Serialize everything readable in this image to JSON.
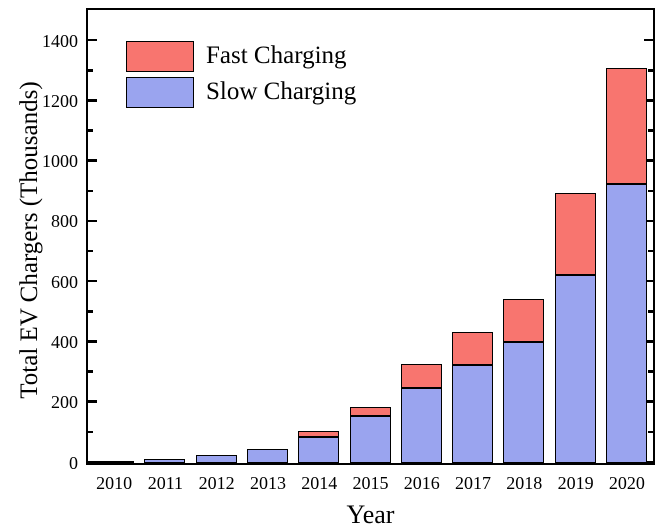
{
  "figure": {
    "y_axis_title": "Total EV Chargers (Thousands)",
    "x_axis_title": "Year",
    "legend": [
      {
        "label": "Fast Charging",
        "color": "#f8756f"
      },
      {
        "label": "Slow Charging",
        "color": "#9aa4ef"
      }
    ],
    "colors": {
      "fast": "#f8756f",
      "slow": "#9aa4ef",
      "axis": "#000000",
      "background": "#ffffff"
    }
  },
  "chart_data": {
    "type": "bar",
    "stacked": true,
    "title": "",
    "xlabel": "Year",
    "ylabel": "Total EV Chargers (Thousands)",
    "categories": [
      "2010",
      "2011",
      "2012",
      "2013",
      "2014",
      "2015",
      "2016",
      "2017",
      "2018",
      "2019",
      "2020"
    ],
    "series": [
      {
        "name": "Slow Charging",
        "color": "#9aa4ef",
        "values": [
          7,
          13,
          25,
          45,
          85,
          155,
          250,
          325,
          400,
          625,
          925
        ]
      },
      {
        "name": "Fast Charging",
        "color": "#f8756f",
        "values": [
          0,
          0,
          0,
          0,
          20,
          30,
          80,
          110,
          145,
          270,
          385
        ]
      }
    ],
    "stack_totals": [
      7,
      13,
      25,
      45,
      105,
      185,
      330,
      435,
      545,
      895,
      1310
    ],
    "ylim": [
      0,
      1500
    ],
    "yticks_major": [
      0,
      200,
      400,
      600,
      800,
      1000,
      1200,
      1400
    ],
    "yticks_minor": [
      100,
      300,
      500,
      700,
      900,
      1100,
      1300
    ],
    "grid": false,
    "legend_position": "upper-left",
    "bar_edge_color": "#000000",
    "tick_direction": "in",
    "tick_sides": [
      "left",
      "right"
    ]
  }
}
